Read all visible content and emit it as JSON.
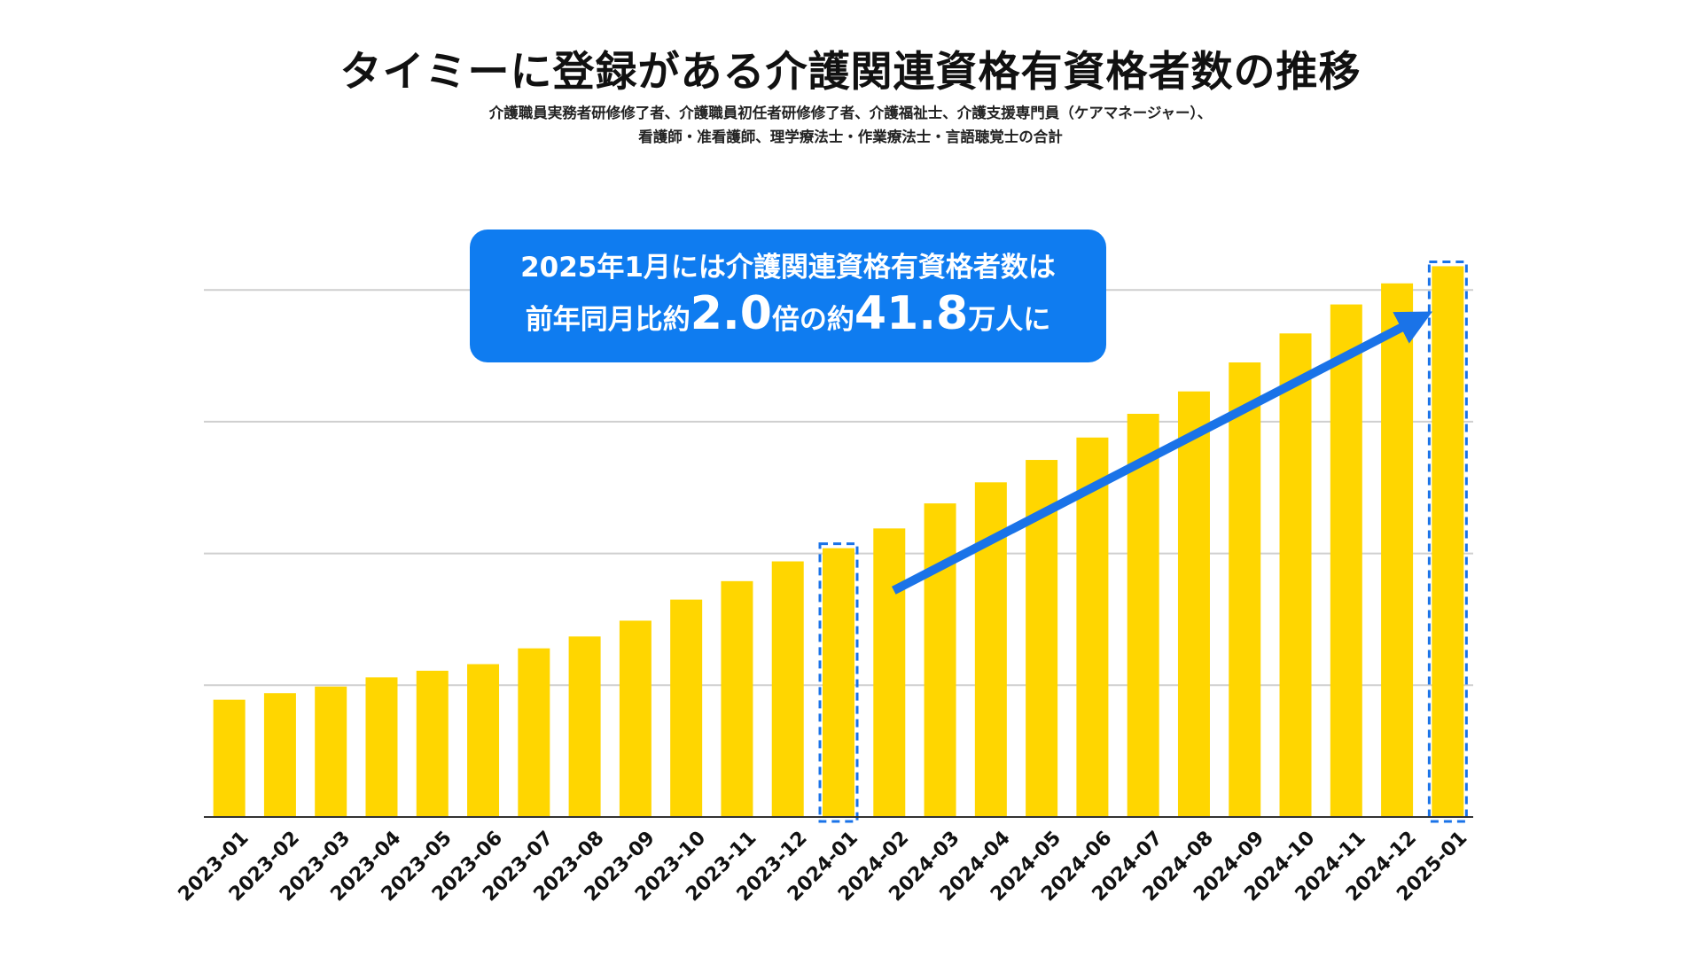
{
  "chart_data": {
    "type": "bar",
    "title": "タイミーに登録がある介護関連資格有資格者数の推移",
    "subtitle_lines": [
      "介護職員実務者研修修了者、介護職員初任者研修修了者、介護福祉士、介護支援専門員（ケアマネージャー）、",
      "看護師・准看護師、理学療法士・作業療法士・言語聴覚士の合計"
    ],
    "categories": [
      "2023-01",
      "2023-02",
      "2023-03",
      "2023-04",
      "2023-05",
      "2023-06",
      "2023-07",
      "2023-08",
      "2023-09",
      "2023-10",
      "2023-11",
      "2023-12",
      "2024-01",
      "2024-02",
      "2024-03",
      "2024-04",
      "2024-05",
      "2024-06",
      "2024-07",
      "2024-08",
      "2024-09",
      "2024-10",
      "2024-11",
      "2024-12",
      "2025-01"
    ],
    "values": [
      8.9,
      9.4,
      9.9,
      10.6,
      11.1,
      11.6,
      12.8,
      13.7,
      14.9,
      16.5,
      17.9,
      19.4,
      20.4,
      21.9,
      23.8,
      25.4,
      27.1,
      28.8,
      30.6,
      32.3,
      34.5,
      36.7,
      38.9,
      40.5,
      41.8
    ],
    "unit": "万人",
    "ylim": [
      0,
      46
    ],
    "gridlines": [
      10,
      20,
      30,
      40
    ],
    "highlighted": [
      "2024-01",
      "2025-01"
    ],
    "bar_color": "#ffd600",
    "arrow": {
      "from": "2024-02",
      "to": "2024-12",
      "color": "#1a73e8"
    }
  },
  "callout": {
    "line1": "2025年1月には介護関連資格有資格者数は",
    "line2_prefix": "前年同月比約",
    "ratio": "2.0",
    "line2_mid": "倍の約",
    "total": "41.8",
    "line2_suffix": "万人に",
    "color": "#0f7cf0"
  }
}
